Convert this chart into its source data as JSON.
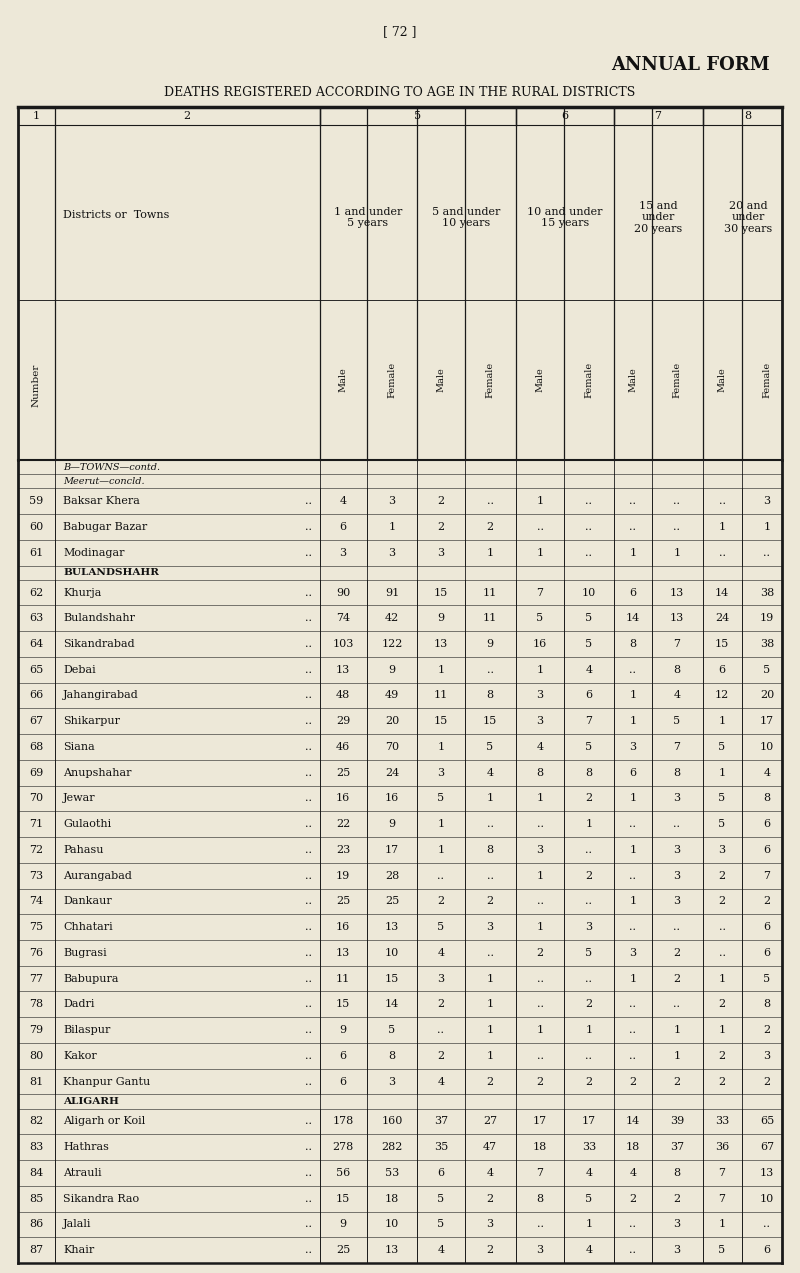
{
  "page_number": "[ 72 ]",
  "title": "ANNUAL FORM",
  "subtitle": "DEATHS REGISTERED ACCORDING TO AGE IN THE RURAL DISTRICTS",
  "rows": [
    {
      "num": "59",
      "name": "Baksar Khera",
      "sec": "B—TOWNS—contd.\nMeerut—concld.",
      "vals": [
        "4",
        "3",
        "2",
        "..",
        "1",
        "..",
        "..",
        "..",
        "..",
        "3"
      ]
    },
    {
      "num": "60",
      "name": "Babugar Bazar",
      "sec": "",
      "vals": [
        "6",
        "1",
        "2",
        "2",
        "..",
        "..",
        "..",
        "..",
        "1",
        "1"
      ]
    },
    {
      "num": "61",
      "name": "Modinagar",
      "sec": "",
      "vals": [
        "3",
        "3",
        "3",
        "1",
        "1",
        "..",
        "1",
        "1",
        "..",
        ".."
      ]
    },
    {
      "num": "62",
      "name": "Khurja",
      "sec": "BULANDSHAHR",
      "vals": [
        "90",
        "91",
        "15",
        "11",
        "7",
        "10",
        "6",
        "13",
        "14",
        "38"
      ]
    },
    {
      "num": "63",
      "name": "Bulandshahr",
      "sec": "",
      "vals": [
        "74",
        "42",
        "9",
        "11",
        "5",
        "5",
        "14",
        "13",
        "24",
        "19"
      ]
    },
    {
      "num": "64",
      "name": "Sikandrabad",
      "sec": "",
      "vals": [
        "103",
        "122",
        "13",
        "9",
        "16",
        "5",
        "8",
        "7",
        "15",
        "38"
      ]
    },
    {
      "num": "65",
      "name": "Debai",
      "sec": "",
      "vals": [
        "13",
        "9",
        "1",
        "..",
        "1",
        "4",
        "..",
        "8",
        "6",
        "5"
      ]
    },
    {
      "num": "66",
      "name": "Jahangirabad",
      "sec": "",
      "vals": [
        "48",
        "49",
        "11",
        "8",
        "3",
        "6",
        "1",
        "4",
        "12",
        "20"
      ]
    },
    {
      "num": "67",
      "name": "Shikarpur",
      "sec": "",
      "vals": [
        "29",
        "20",
        "15",
        "15",
        "3",
        "7",
        "1",
        "5",
        "1",
        "17"
      ]
    },
    {
      "num": "68",
      "name": "Siana",
      "sec": "",
      "vals": [
        "46",
        "70",
        "1",
        "5",
        "4",
        "5",
        "3",
        "7",
        "5",
        "10"
      ]
    },
    {
      "num": "69",
      "name": "Anupshahar",
      "sec": "",
      "vals": [
        "25",
        "24",
        "3",
        "4",
        "8",
        "8",
        "6",
        "8",
        "1",
        "4"
      ]
    },
    {
      "num": "70",
      "name": "Jewar",
      "sec": "",
      "vals": [
        "16",
        "16",
        "5",
        "1",
        "1",
        "2",
        "1",
        "3",
        "5",
        "8"
      ]
    },
    {
      "num": "71",
      "name": "Gulaothi",
      "sec": "",
      "vals": [
        "22",
        "9",
        "1",
        "..",
        "..",
        "1",
        "..",
        "..",
        "5",
        "6"
      ]
    },
    {
      "num": "72",
      "name": "Pahasu",
      "sec": "",
      "vals": [
        "23",
        "17",
        "1",
        "8",
        "3",
        "..",
        "1",
        "3",
        "3",
        "6"
      ]
    },
    {
      "num": "73",
      "name": "Aurangabad",
      "sec": "",
      "vals": [
        "19",
        "28",
        "..",
        "..",
        "1",
        "2",
        "..",
        "3",
        "2",
        "7"
      ]
    },
    {
      "num": "74",
      "name": "Dankaur",
      "sec": "",
      "vals": [
        "25",
        "25",
        "2",
        "2",
        "..",
        "..",
        "1",
        "3",
        "2",
        "2"
      ]
    },
    {
      "num": "75",
      "name": "Chhatari",
      "sec": "",
      "vals": [
        "16",
        "13",
        "5",
        "3",
        "1",
        "3",
        "..",
        "..",
        "..",
        "6"
      ]
    },
    {
      "num": "76",
      "name": "Bugrasi",
      "sec": "",
      "vals": [
        "13",
        "10",
        "4",
        "..",
        "2",
        "5",
        "3",
        "2",
        "..",
        "6"
      ]
    },
    {
      "num": "77",
      "name": "Babupura",
      "sec": "",
      "vals": [
        "11",
        "15",
        "3",
        "1",
        "..",
        "..",
        "1",
        "2",
        "1",
        "5"
      ]
    },
    {
      "num": "78",
      "name": "Dadri",
      "sec": "",
      "vals": [
        "15",
        "14",
        "2",
        "1",
        "..",
        "2",
        "..",
        "..",
        "2",
        "8"
      ]
    },
    {
      "num": "79",
      "name": "Bilaspur",
      "sec": "",
      "vals": [
        "9",
        "5",
        "..",
        "1",
        "1",
        "1",
        "..",
        "1",
        "1",
        "2"
      ]
    },
    {
      "num": "80",
      "name": "Kakor",
      "sec": "",
      "vals": [
        "6",
        "8",
        "2",
        "1",
        "..",
        "..",
        "..",
        "1",
        "2",
        "3"
      ]
    },
    {
      "num": "81",
      "name": "Khanpur Gantu",
      "sec": "",
      "vals": [
        "6",
        "3",
        "4",
        "2",
        "2",
        "2",
        "2",
        "2",
        "2",
        "2"
      ]
    },
    {
      "num": "82",
      "name": "Aligarh or Koil",
      "sec": "ALIGARH",
      "vals": [
        "178",
        "160",
        "37",
        "27",
        "17",
        "17",
        "14",
        "39",
        "33",
        "65"
      ]
    },
    {
      "num": "83",
      "name": "Hathras",
      "sec": "",
      "vals": [
        "278",
        "282",
        "35",
        "47",
        "18",
        "33",
        "18",
        "37",
        "36",
        "67"
      ]
    },
    {
      "num": "84",
      "name": "Atrauli",
      "sec": "",
      "vals": [
        "56",
        "53",
        "6",
        "4",
        "7",
        "4",
        "4",
        "8",
        "7",
        "13"
      ]
    },
    {
      "num": "85",
      "name": "Sikandra Rao",
      "sec": "",
      "vals": [
        "15",
        "18",
        "5",
        "2",
        "8",
        "5",
        "2",
        "2",
        "7",
        "10"
      ]
    },
    {
      "num": "86",
      "name": "Jalali",
      "sec": "",
      "vals": [
        "9",
        "10",
        "5",
        "3",
        "..",
        "1",
        "..",
        "3",
        "1",
        ".."
      ]
    },
    {
      "num": "87",
      "name": "Khair",
      "sec": "",
      "vals": [
        "25",
        "13",
        "4",
        "2",
        "3",
        "4",
        "..",
        "3",
        "5",
        "6"
      ]
    }
  ],
  "bg_color": "#ede8d8",
  "line_color": "#1a1a1a",
  "text_color": "#111111"
}
